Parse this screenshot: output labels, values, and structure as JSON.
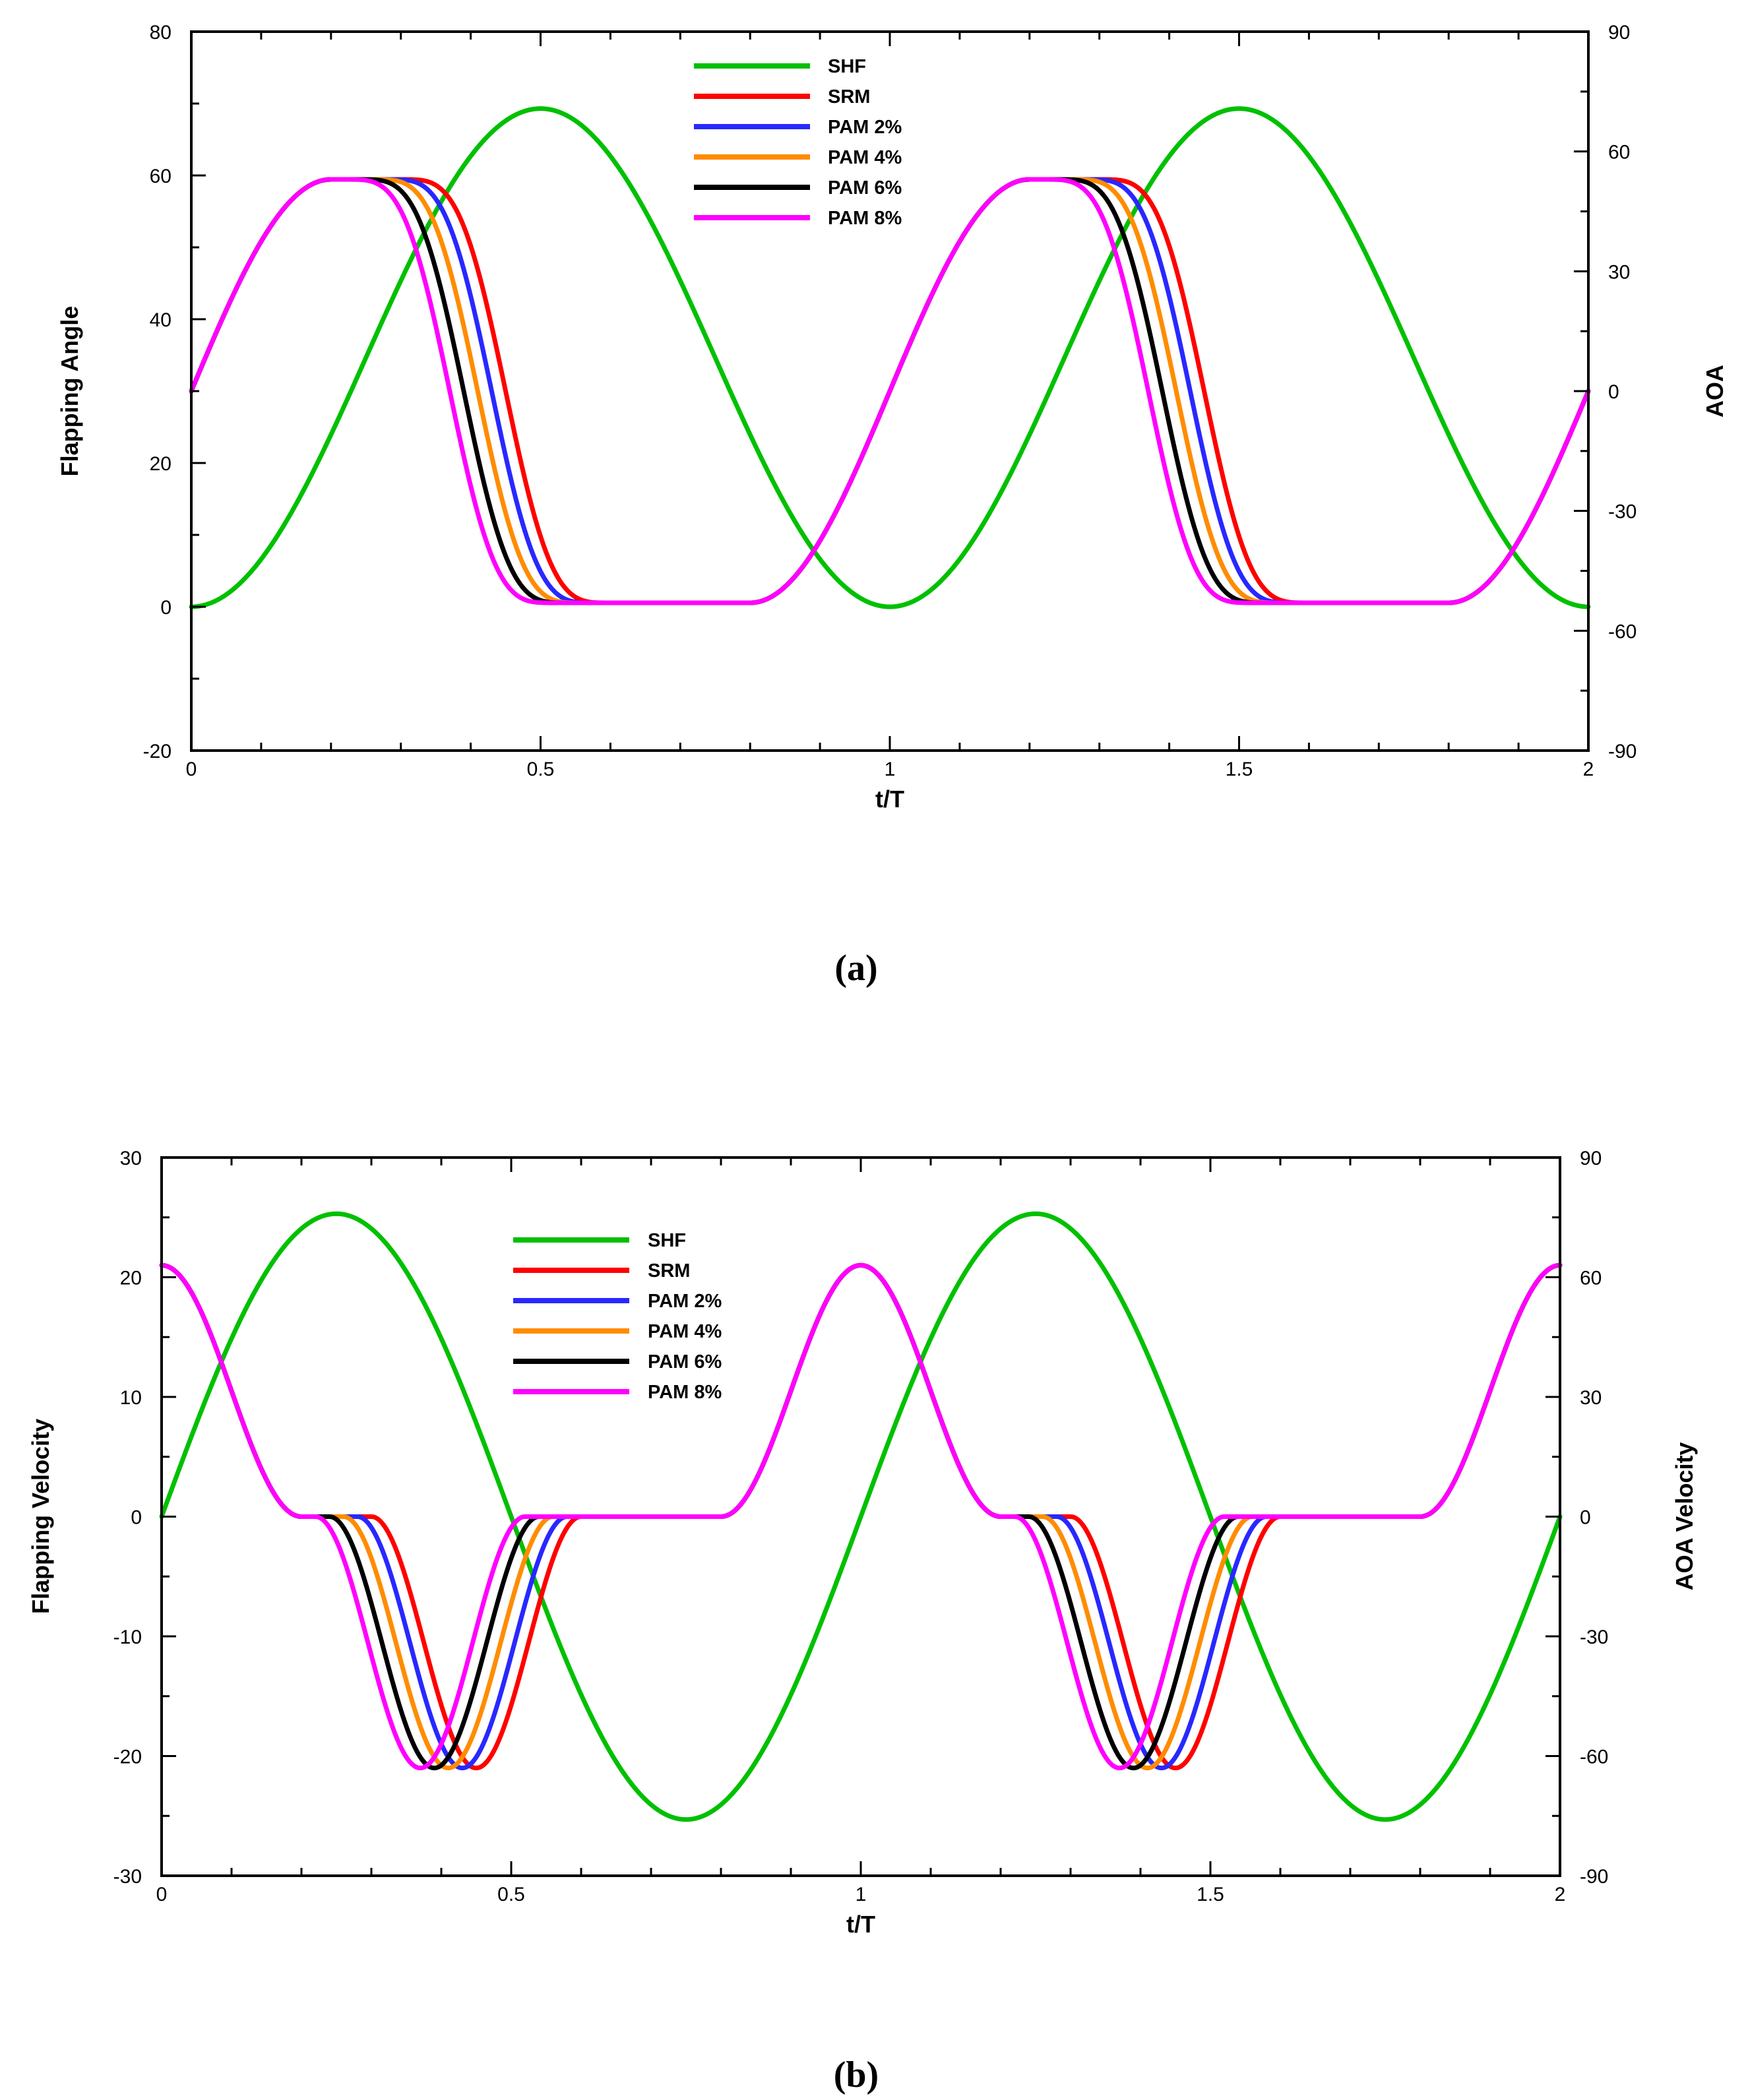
{
  "chart_data": [
    {
      "type": "line",
      "panel_label": "(a)",
      "xlabel": "t/T",
      "ylabel": "Flapping Angle",
      "y2label": "AOA",
      "xlim": [
        0,
        2
      ],
      "ylim": [
        -20,
        80
      ],
      "y2lim": [
        -90,
        90
      ],
      "x_ticks": [
        0,
        0.5,
        1,
        1.5,
        2
      ],
      "x_tick_labels": [
        "0",
        "0.5",
        "1",
        "1.5",
        "2"
      ],
      "y_ticks": [
        -20,
        0,
        20,
        40,
        60,
        80
      ],
      "y_tick_labels": [
        "-20",
        "0",
        "20",
        "40",
        "60",
        "80"
      ],
      "y2_ticks": [
        -90,
        -60,
        -30,
        0,
        30,
        60,
        90
      ],
      "y2_tick_labels": [
        "-90",
        "-60",
        "-30",
        "0",
        "30",
        "60",
        "90"
      ],
      "legend_position": "top-center",
      "series": [
        {
          "name": "SHF",
          "color": "#00c000",
          "axis": "left",
          "kind": "flap-angle",
          "amplitude": 69.3
        },
        {
          "name": "SRM",
          "color": "#ff0000",
          "axis": "right",
          "kind": "aoa",
          "amplitude": 53,
          "plateau_frac": 0.06,
          "shift": 0
        },
        {
          "name": "PAM 2%",
          "color": "#2828ff",
          "axis": "right",
          "kind": "aoa",
          "amplitude": 53,
          "plateau_frac": 0.06,
          "shift": 0.02
        },
        {
          "name": "PAM 4%",
          "color": "#ff8c00",
          "axis": "right",
          "kind": "aoa",
          "amplitude": 53,
          "plateau_frac": 0.06,
          "shift": 0.04
        },
        {
          "name": "PAM 6%",
          "color": "#000000",
          "axis": "right",
          "kind": "aoa",
          "amplitude": 53,
          "plateau_frac": 0.06,
          "shift": 0.06
        },
        {
          "name": "PAM 8%",
          "color": "#ff00ff",
          "axis": "right",
          "kind": "aoa",
          "amplitude": 53,
          "plateau_frac": 0.06,
          "shift": 0.08
        }
      ]
    },
    {
      "type": "line",
      "panel_label": "(b)",
      "xlabel": "t/T",
      "ylabel": "Flapping Velocity",
      "y2label": "AOA Velocity",
      "xlim": [
        0,
        2
      ],
      "ylim": [
        -30,
        30
      ],
      "y2lim": [
        -90,
        90
      ],
      "x_ticks": [
        0,
        0.5,
        1,
        1.5,
        2
      ],
      "x_tick_labels": [
        "0",
        "0.5",
        "1",
        "1.5",
        "2"
      ],
      "y_ticks": [
        -30,
        -20,
        -10,
        0,
        10,
        20,
        30
      ],
      "y_tick_labels": [
        "-30",
        "-20",
        "-10",
        "0",
        "10",
        "20",
        "30"
      ],
      "y2_ticks": [
        -90,
        -60,
        -30,
        0,
        30,
        60,
        90
      ],
      "y2_tick_labels": [
        "-90",
        "-60",
        "-30",
        "0",
        "30",
        "60",
        "90"
      ],
      "legend_position": "top-left",
      "series": [
        {
          "name": "SHF",
          "color": "#00c000",
          "axis": "left",
          "kind": "flap-velocity",
          "amplitude": 25.3
        },
        {
          "name": "SRM",
          "color": "#ff0000",
          "axis": "right",
          "kind": "aoa-velocity",
          "amplitude": 63,
          "shift": 0
        },
        {
          "name": "PAM 2%",
          "color": "#2828ff",
          "axis": "right",
          "kind": "aoa-velocity",
          "amplitude": 63,
          "shift": 0.02
        },
        {
          "name": "PAM 4%",
          "color": "#ff8c00",
          "axis": "right",
          "kind": "aoa-velocity",
          "amplitude": 63,
          "shift": 0.04
        },
        {
          "name": "PAM 6%",
          "color": "#000000",
          "axis": "right",
          "kind": "aoa-velocity",
          "amplitude": 63,
          "shift": 0.06
        },
        {
          "name": "PAM 8%",
          "color": "#ff00ff",
          "axis": "right",
          "kind": "aoa-velocity",
          "amplitude": 63,
          "shift": 0.08
        }
      ]
    }
  ]
}
